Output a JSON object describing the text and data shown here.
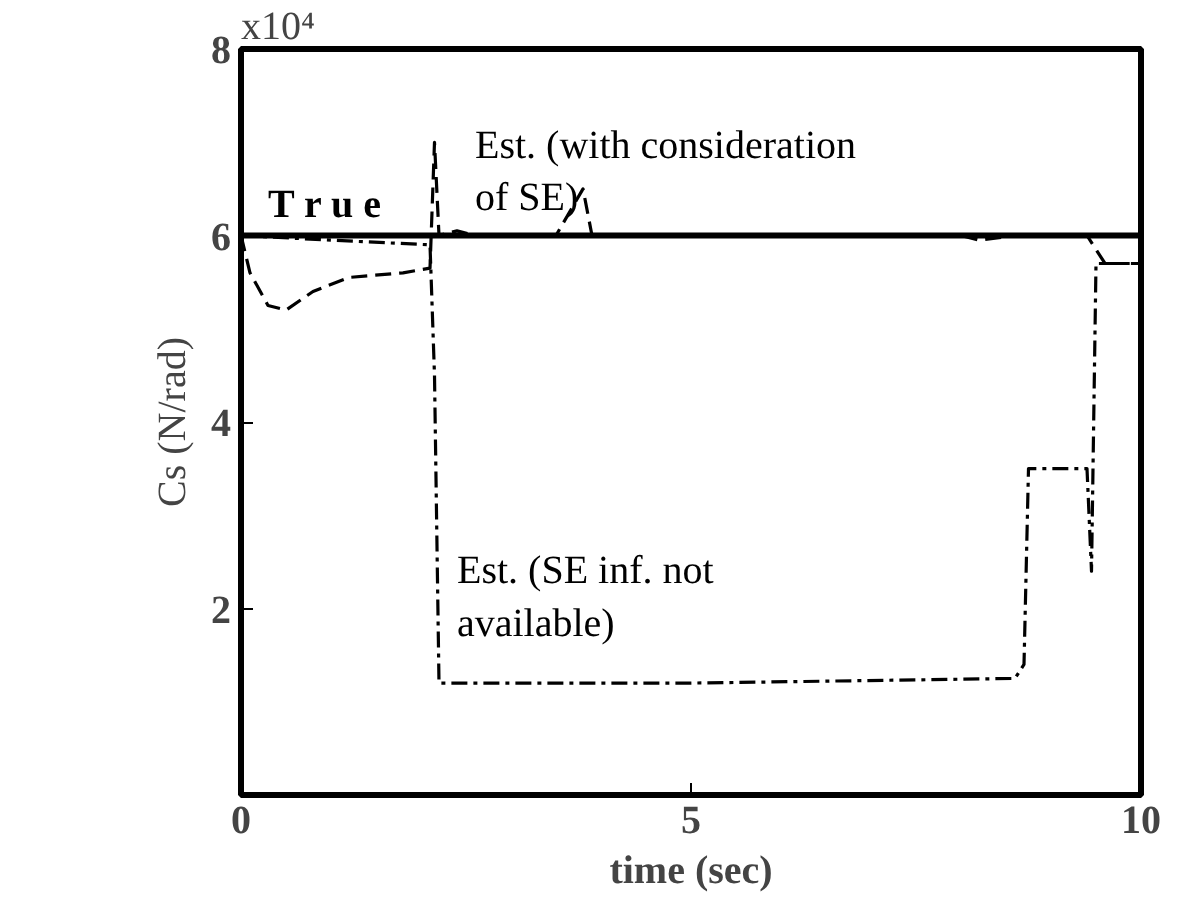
{
  "chart_data": {
    "type": "line",
    "xlabel": "time (sec)",
    "ylabel": "Cs (N/rad)",
    "xlim": [
      0,
      10
    ],
    "xticks": [
      {
        "value": 0,
        "label": "0"
      },
      5,
      10
    ],
    "ylim": [
      0,
      8
    ],
    "yticks": [
      2,
      4,
      6,
      8
    ],
    "annotations": [
      "x10⁴"
    ],
    "grid": false,
    "series": [
      {
        "name": "T r u e",
        "color": "#000000",
        "line_style": "solid",
        "x": [
          0,
          10
        ],
        "values": [
          6,
          6
        ]
      },
      {
        "name": "Est. (with consideration\nof SE)",
        "color": "#000000",
        "line_style": "dashed",
        "x": [
          0,
          0.1,
          0.3,
          0.5,
          0.8,
          1.2,
          1.8,
          2.1,
          2.15,
          2.2,
          2.4,
          2.6,
          3.5,
          3.8,
          3.9,
          5,
          8,
          8.2,
          8.6,
          9.4,
          9.6,
          10
        ],
        "values": [
          6.0,
          5.6,
          5.25,
          5.2,
          5.4,
          5.55,
          5.6,
          5.65,
          7.0,
          6.0,
          6.05,
          6.0,
          6.0,
          6.5,
          6.0,
          6.0,
          6.0,
          5.95,
          6.0,
          6.0,
          5.7,
          5.7
        ]
      },
      {
        "name": "Est. (SE inf. not\navailable)",
        "color": "#000000",
        "line_style": "dashdot",
        "x": [
          0,
          1,
          2.1,
          2.15,
          2.2,
          5,
          8.6,
          8.7,
          8.75,
          9.4,
          9.45,
          9.5,
          10
        ],
        "values": [
          6.0,
          5.95,
          5.9,
          4.5,
          1.2,
          1.2,
          1.25,
          1.4,
          3.5,
          3.5,
          2.4,
          5.7,
          5.7
        ]
      }
    ]
  }
}
